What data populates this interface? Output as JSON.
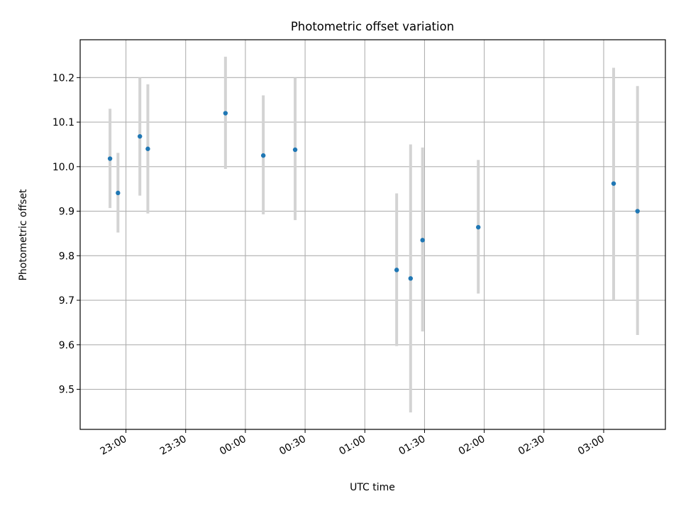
{
  "chart_data": {
    "type": "scatter",
    "title": "Photometric offset variation",
    "xlabel": "UTC time",
    "ylabel": "Photometric offset",
    "x_scale": "time",
    "xlim": [
      "22:37",
      "03:31"
    ],
    "ylim": [
      9.41,
      10.285
    ],
    "xticks": [
      "23:00",
      "23:30",
      "00:00",
      "00:30",
      "01:00",
      "01:30",
      "02:00",
      "02:30",
      "03:00"
    ],
    "yticks": [
      "9.5",
      "9.6",
      "9.7",
      "9.8",
      "9.9",
      "10.0",
      "10.1",
      "10.2"
    ],
    "grid": true,
    "legend": "none",
    "series": [
      {
        "points": [
          {
            "x": "22:52",
            "y": 10.018,
            "err_low": 9.907,
            "err_high": 10.13
          },
          {
            "x": "22:56",
            "y": 9.941,
            "err_low": 9.852,
            "err_high": 10.031
          },
          {
            "x": "23:07",
            "y": 10.068,
            "err_low": 9.935,
            "err_high": 10.2
          },
          {
            "x": "23:11",
            "y": 10.04,
            "err_low": 9.895,
            "err_high": 10.185
          },
          {
            "x": "23:50",
            "y": 10.12,
            "err_low": 9.995,
            "err_high": 10.247
          },
          {
            "x": "00:09",
            "y": 10.025,
            "err_low": 9.893,
            "err_high": 10.16
          },
          {
            "x": "00:25",
            "y": 10.038,
            "err_low": 9.88,
            "err_high": 10.2
          },
          {
            "x": "01:16",
            "y": 9.768,
            "err_low": 9.597,
            "err_high": 9.94
          },
          {
            "x": "01:23",
            "y": 9.749,
            "err_low": 9.448,
            "err_high": 10.05
          },
          {
            "x": "01:29",
            "y": 9.835,
            "err_low": 9.63,
            "err_high": 10.043
          },
          {
            "x": "01:57",
            "y": 9.864,
            "err_low": 9.715,
            "err_high": 10.015
          },
          {
            "x": "03:05",
            "y": 9.962,
            "err_low": 9.7,
            "err_high": 10.222
          },
          {
            "x": "03:17",
            "y": 9.9,
            "err_low": 9.622,
            "err_high": 10.181
          }
        ]
      }
    ],
    "colors": {
      "point": "#1f77b4",
      "errorbar": "#d3d3d3",
      "grid": "#b0b0b0",
      "axes": "#000000"
    }
  }
}
